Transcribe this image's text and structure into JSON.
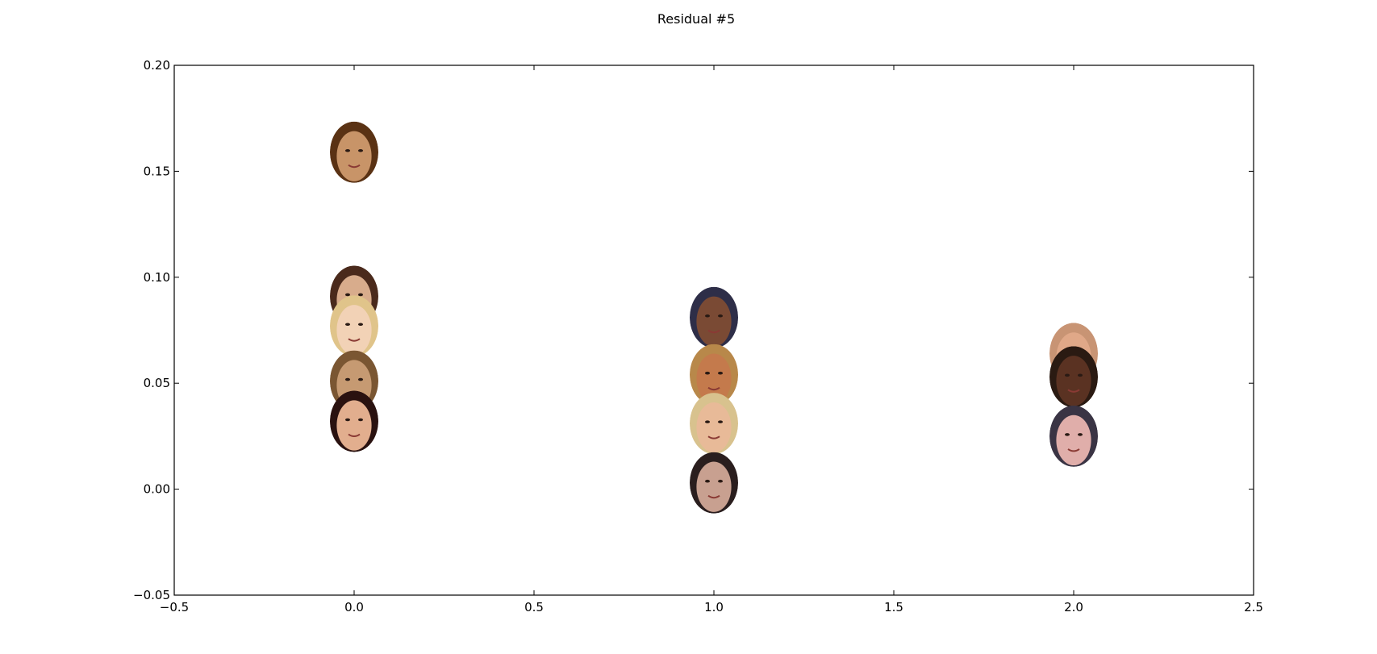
{
  "chart_data": {
    "type": "scatter",
    "title": "Residual #5",
    "xlabel": "",
    "ylabel": "",
    "xlim": [
      -0.5,
      2.5
    ],
    "ylim": [
      -0.05,
      0.2
    ],
    "xticks": [
      "−0.5",
      "0.0",
      "0.5",
      "1.0",
      "1.5",
      "2.0",
      "2.5"
    ],
    "yticks": [
      "−0.05",
      "0.00",
      "0.05",
      "0.10",
      "0.15",
      "0.20"
    ],
    "grid": false,
    "legend": "none",
    "marker": "face-thumbnail",
    "points": [
      {
        "x": 0,
        "y": 0.159,
        "tone": "#c89468",
        "hair": "#5a3214"
      },
      {
        "x": 0,
        "y": 0.091,
        "tone": "#d8ac8c",
        "hair": "#4a2a1c"
      },
      {
        "x": 0,
        "y": 0.077,
        "tone": "#f2d2b6",
        "hair": "#e0c48a"
      },
      {
        "x": 0,
        "y": 0.051,
        "tone": "#c69a72",
        "hair": "#7a5632"
      },
      {
        "x": 0,
        "y": 0.032,
        "tone": "#e2ae8e",
        "hair": "#2a1210"
      },
      {
        "x": 1,
        "y": 0.081,
        "tone": "#7a4a34",
        "hair": "#2e2e48"
      },
      {
        "x": 1,
        "y": 0.054,
        "tone": "#c47a4c",
        "hair": "#b8884a"
      },
      {
        "x": 1,
        "y": 0.031,
        "tone": "#e8ba98",
        "hair": "#d8c28e"
      },
      {
        "x": 1,
        "y": 0.003,
        "tone": "#c8a090",
        "hair": "#2a1e1e"
      },
      {
        "x": 2,
        "y": 0.064,
        "tone": "#e0a888",
        "hair": "#c89474"
      },
      {
        "x": 2,
        "y": 0.053,
        "tone": "#5a3222",
        "hair": "#2a1a12"
      },
      {
        "x": 2,
        "y": 0.025,
        "tone": "#e0aeaa",
        "hair": "#3a3444"
      }
    ]
  }
}
